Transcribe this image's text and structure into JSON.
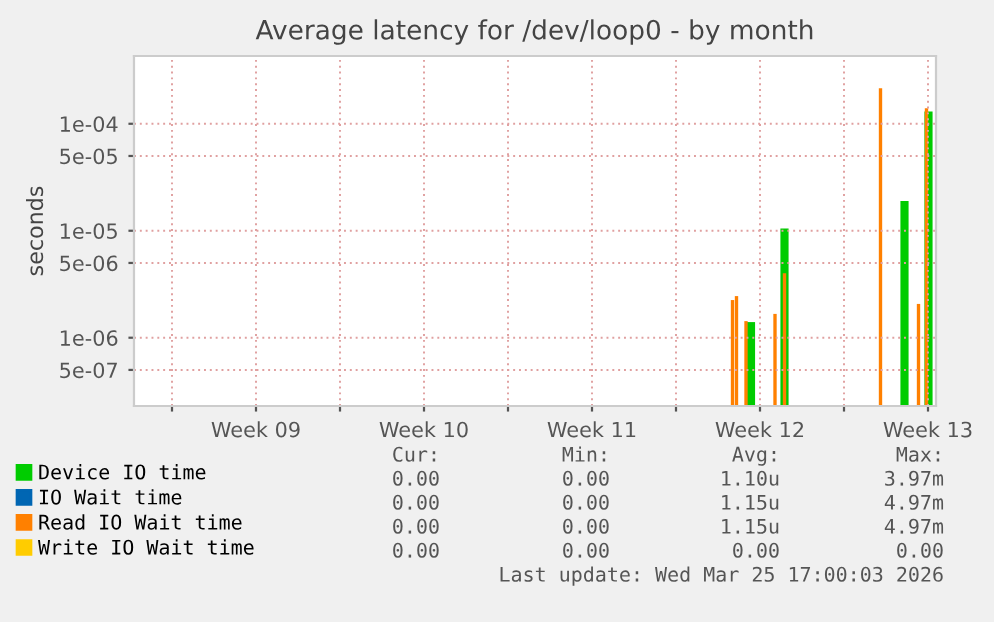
{
  "chart_data": {
    "type": "bar",
    "title": "Average latency for /dev/loop0 - by month",
    "ylabel": "seconds",
    "log": "y",
    "grid": true,
    "legend": "bottom left",
    "xlim": [
      "2026-02-21T10:00",
      "2026-03-26T20:00"
    ],
    "xticks": [
      {
        "value": "2026-02-23",
        "label": null
      },
      {
        "value": "2026-02-26T12:00",
        "label": "Week 09"
      },
      {
        "value": "2026-03-02",
        "label": null
      },
      {
        "value": "2026-03-05T12:00",
        "label": "Week 10"
      },
      {
        "value": "2026-03-09",
        "label": null
      },
      {
        "value": "2026-03-12T12:00",
        "label": "Week 11"
      },
      {
        "value": "2026-03-16",
        "label": null
      },
      {
        "value": "2026-03-19T12:00",
        "label": "Week 12"
      },
      {
        "value": "2026-03-23",
        "label": null
      },
      {
        "value": "2026-03-26T12:00",
        "label": "Week 13"
      }
    ],
    "ylim": [
      2.3e-07,
      0.00043
    ],
    "yticks": [
      {
        "value": 5e-07,
        "label": "5e-07"
      },
      {
        "value": 1e-06,
        "label": "1e-06"
      },
      {
        "value": 5e-06,
        "label": "5e-06"
      },
      {
        "value": 1e-05,
        "label": "1e-05"
      },
      {
        "value": 5e-05,
        "label": "5e-05"
      },
      {
        "value": 0.0001,
        "label": "1e-04"
      }
    ],
    "series": [
      {
        "name": "Device IO time",
        "color": "#00cc00",
        "x": [
          "2026-03-19T03:00",
          "2026-03-20T12:30",
          "2026-03-25T12:30",
          "2026-03-26T12:30"
        ],
        "values": [
          1.4e-06,
          1.05e-05,
          1.9e-05,
          0.00013
        ]
      },
      {
        "name": "IO Wait time",
        "color": "#0066b3"
      },
      {
        "name": "Read IO Wait time",
        "color": "#ff8000",
        "x": [
          "2026-03-18T08:30",
          "2026-03-18T12:30",
          "2026-03-18T22:00",
          "2026-03-20T03:00",
          "2026-03-20T12:30",
          "2026-03-24T12:30",
          "2026-03-26T02:30",
          "2026-03-26T10:30"
        ],
        "values": [
          2.25e-06,
          2.45e-06,
          1.43e-06,
          1.67e-06,
          4e-06,
          0.000215,
          2.07e-06,
          0.00014
        ]
      },
      {
        "name": "Write IO Wait time",
        "color": "#ffcc00"
      }
    ],
    "annotations": [
      "Cur:",
      "Min:",
      "Avg:",
      "Max:",
      "0.00",
      "0.00",
      "1.10u",
      "3.97m",
      "0.00",
      "0.00",
      "1.15u",
      "4.97m",
      "0.00",
      "0.00",
      "1.15u",
      "4.97m",
      "0.00",
      "0.00",
      "0.00",
      "0.00",
      "Last update: Wed Mar 25 17:00:03 2026"
    ]
  }
}
